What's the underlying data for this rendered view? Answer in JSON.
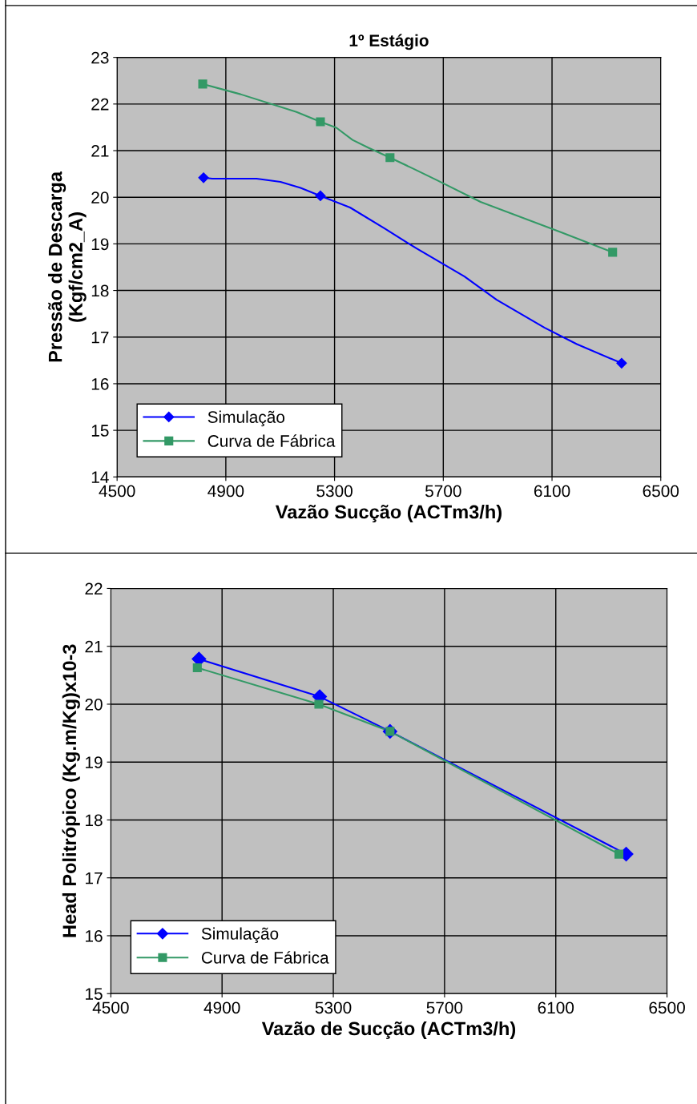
{
  "chart_data": [
    {
      "type": "line",
      "title": "1º Estágio",
      "xlabel": "Vazão Sucção (ACTm3/h)",
      "ylabel": "Pressão de Descarga\n(Kgf/cm2_A)",
      "xlim": [
        4500,
        6500
      ],
      "xticks": [
        4500,
        4900,
        5300,
        5700,
        6100,
        6500
      ],
      "ylim": [
        14,
        23
      ],
      "yticks": [
        14,
        15,
        16,
        17,
        18,
        19,
        20,
        21,
        22,
        23
      ],
      "grid": true,
      "legend": "bottom left",
      "series": [
        {
          "name": "Simulação",
          "color": "#0000ff",
          "marker": "none",
          "x": [
            4818,
            4850,
            5013,
            5101,
            5175,
            5248,
            5357,
            5484,
            5602,
            5778,
            5896,
            6073,
            6191,
            6356
          ],
          "values": [
            20.42,
            20.4,
            20.4,
            20.33,
            20.2,
            20.03,
            19.78,
            19.33,
            18.9,
            18.3,
            17.8,
            17.2,
            16.85,
            16.44
          ]
        },
        {
          "type": "scatter",
          "color": "#0000ff",
          "marker": "diamond",
          "x": [
            4818,
            5248,
            6356
          ],
          "values": [
            20.42,
            20.03,
            16.44
          ]
        },
        {
          "name": "Curva de Fábrica",
          "color": "#339966",
          "marker": "none",
          "x": [
            4815,
            4954,
            5160,
            5248,
            5307,
            5366,
            5425,
            5504,
            5587,
            5675,
            5837,
            6132,
            6323
          ],
          "values": [
            22.43,
            22.21,
            21.83,
            21.62,
            21.49,
            21.23,
            21.06,
            20.85,
            20.62,
            20.37,
            19.9,
            19.25,
            18.82
          ]
        },
        {
          "type": "scatter",
          "color": "#339966",
          "marker": "square",
          "x": [
            4815,
            5248,
            5504,
            6323
          ],
          "values": [
            22.43,
            21.62,
            20.85,
            18.82
          ]
        }
      ]
    },
    {
      "type": "line",
      "xlabel": "Vazão de Sucção (ACTm3/h)",
      "ylabel": "Head Politrópico (Kg.m/Kg)x10-3",
      "xlim": [
        4500,
        6500
      ],
      "xticks": [
        4500,
        4900,
        5300,
        5700,
        6100,
        6500
      ],
      "ylim": [
        15,
        22
      ],
      "yticks": [
        15,
        16,
        17,
        18,
        19,
        20,
        21,
        22
      ],
      "grid": true,
      "legend": "bottom left",
      "series": [
        {
          "name": "Simulação",
          "color": "#0000ff",
          "marker": "diamond",
          "x": [
            4817,
            5251,
            5504,
            6353
          ],
          "values": [
            20.78,
            20.13,
            19.53,
            17.41
          ]
        },
        {
          "name": "Curva de Fábrica",
          "color": "#339966",
          "marker": "square",
          "x": [
            4811,
            5248,
            5504,
            6327
          ],
          "values": [
            20.63,
            20.0,
            19.53,
            17.41
          ]
        }
      ]
    }
  ]
}
